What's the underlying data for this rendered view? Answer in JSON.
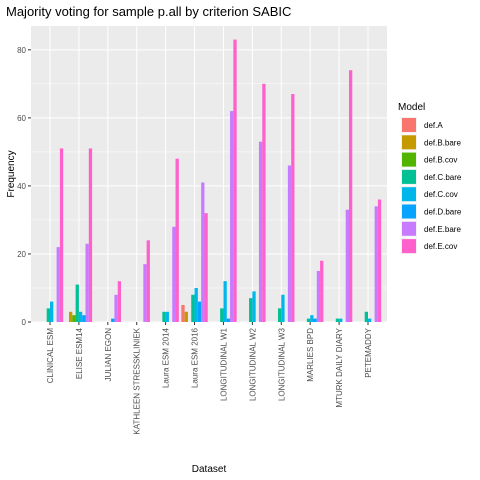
{
  "chart_data": {
    "type": "bar",
    "title": "Majority voting for sample p.all by criterion SABIC",
    "xlabel": "Dataset",
    "ylabel": "Frequency",
    "ylim": [
      0,
      87
    ],
    "yticks": [
      0,
      20,
      40,
      60,
      80
    ],
    "grid": true,
    "legend": {
      "title": "Model",
      "position": "right"
    },
    "categories": [
      "CLINICAL ESM",
      "ELISE ESM14",
      "JULIAN EGON",
      "KATHLEEN STRESSKLINIEK",
      "Laura ESM 2014",
      "Laura ESM 2016",
      "LONGITUDINAL W1",
      "LONGITUDINAL W2",
      "LONGITUDINAL W3",
      "MARLIES BPD",
      "MTURK DAILY DIARY",
      "PETEMADDY"
    ],
    "series": [
      {
        "name": "def.A",
        "color": "#F8766D",
        "values": [
          0,
          0,
          0,
          0,
          0,
          5,
          0,
          0,
          0,
          0,
          0,
          0
        ]
      },
      {
        "name": "def.B.bare",
        "color": "#C49A00",
        "values": [
          0,
          3,
          0,
          0,
          0,
          3,
          0,
          0,
          0,
          0,
          0,
          0
        ]
      },
      {
        "name": "def.B.cov",
        "color": "#53B400",
        "values": [
          0,
          2,
          0,
          0,
          0,
          0,
          0,
          0,
          0,
          0,
          0,
          0
        ]
      },
      {
        "name": "def.C.bare",
        "color": "#00C094",
        "values": [
          4,
          11,
          0,
          0,
          3,
          8,
          4,
          7,
          4,
          1,
          1,
          3
        ]
      },
      {
        "name": "def.C.cov",
        "color": "#00B6EB",
        "values": [
          6,
          3,
          0,
          0,
          3,
          10,
          12,
          9,
          8,
          2,
          1,
          1
        ]
      },
      {
        "name": "def.D.bare",
        "color": "#06A4FF",
        "values": [
          0,
          2,
          1,
          0,
          0,
          6,
          1,
          0,
          0,
          1,
          0,
          0
        ]
      },
      {
        "name": "def.E.bare",
        "color": "#C77CFF",
        "values": [
          22,
          23,
          8,
          17,
          28,
          41,
          62,
          53,
          46,
          15,
          33,
          34
        ]
      },
      {
        "name": "def.E.cov",
        "color": "#FF61CC",
        "values": [
          51,
          51,
          12,
          24,
          48,
          32,
          83,
          70,
          67,
          18,
          74,
          36
        ]
      }
    ]
  }
}
